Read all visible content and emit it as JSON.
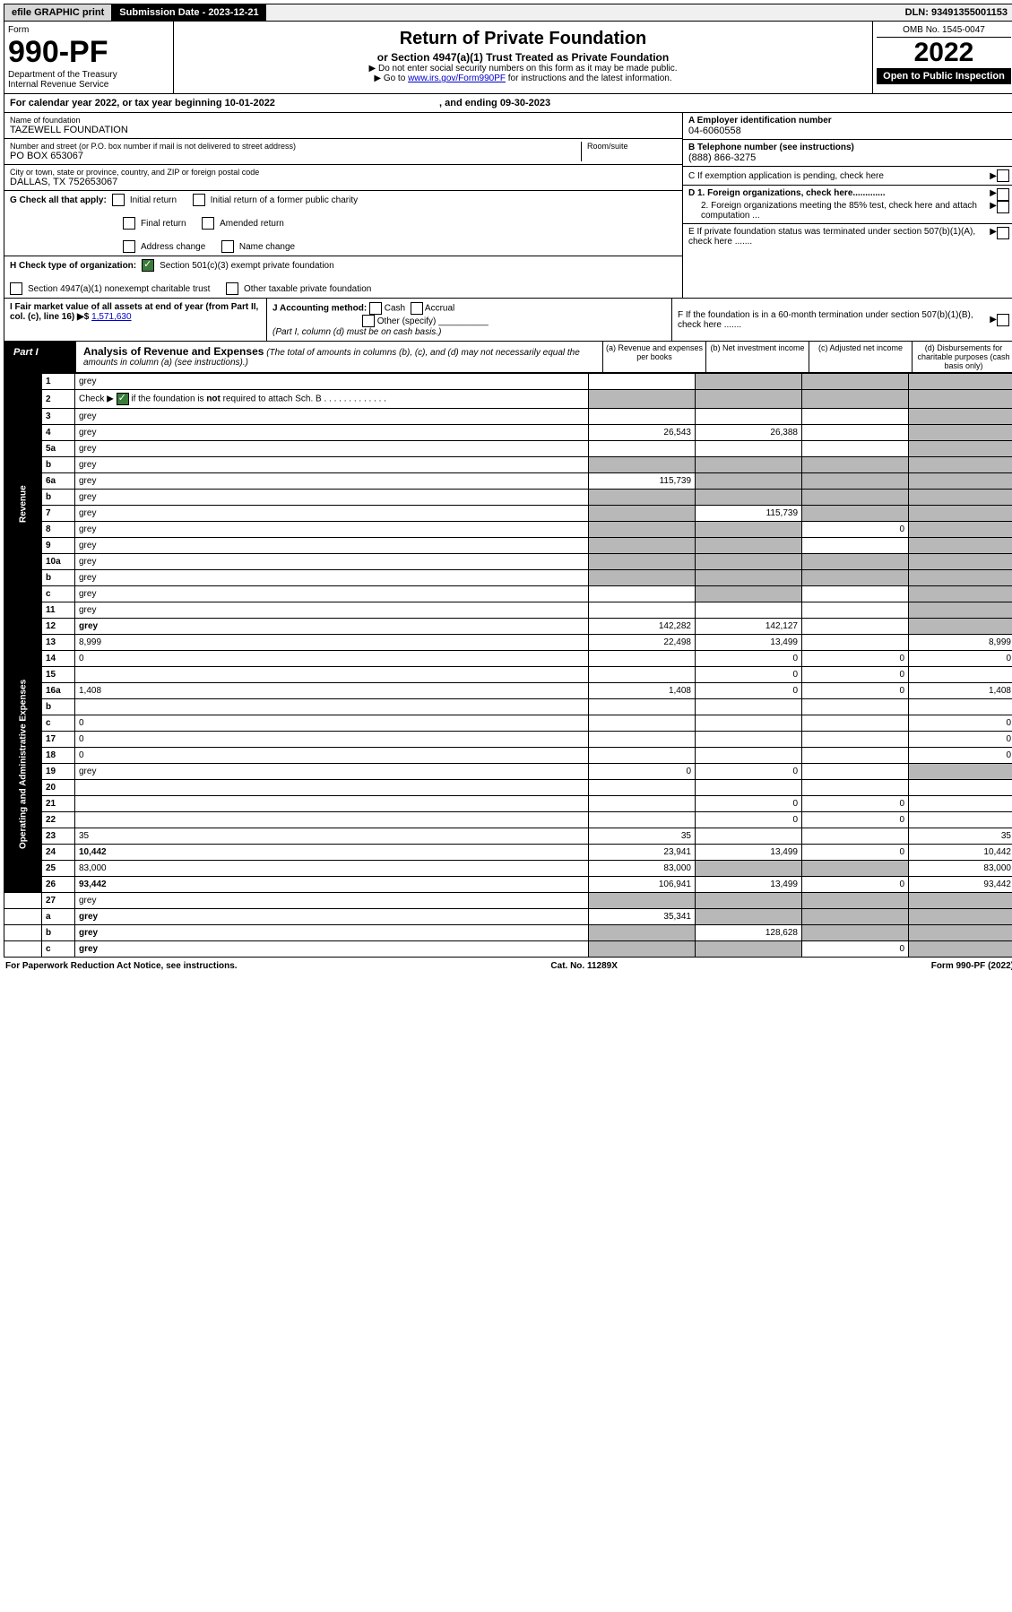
{
  "topbar": {
    "efile": "efile GRAPHIC print",
    "sub_date": "Submission Date - 2023-12-21",
    "dln": "DLN: 93491355001153"
  },
  "header": {
    "form_label": "Form",
    "form_no": "990-PF",
    "dept": "Department of the Treasury\nInternal Revenue Service",
    "title": "Return of Private Foundation",
    "subtitle": "or Section 4947(a)(1) Trust Treated as Private Foundation",
    "note1": "▶ Do not enter social security numbers on this form as it may be made public.",
    "note2": "▶ Go to www.irs.gov/Form990PF for instructions and the latest information.",
    "link": "www.irs.gov/Form990PF",
    "omb": "OMB No. 1545-0047",
    "year": "2022",
    "open": "Open to Public Inspection"
  },
  "cal_year": {
    "prefix": "For calendar year 2022, or tax year beginning ",
    "begin": "10-01-2022",
    "mid": " , and ending ",
    "end": "09-30-2023"
  },
  "ident": {
    "name_lbl": "Name of foundation",
    "name": "TAZEWELL FOUNDATION",
    "addr_lbl": "Number and street (or P.O. box number if mail is not delivered to street address)",
    "addr": "PO BOX 653067",
    "room_lbl": "Room/suite",
    "city_lbl": "City or town, state or province, country, and ZIP or foreign postal code",
    "city": "DALLAS, TX  752653067",
    "a_lbl": "A Employer identification number",
    "ein": "04-6060558",
    "b_lbl": "B Telephone number (see instructions)",
    "phone": "(888) 866-3275",
    "c_lbl": "C If exemption application is pending, check here",
    "d1": "D 1. Foreign organizations, check here.............",
    "d2": "2. Foreign organizations meeting the 85% test, check here and attach computation ...",
    "e": "E If private foundation status was terminated under section 507(b)(1)(A), check here .......",
    "f": "F If the foundation is in a 60-month termination under section 507(b)(1)(B), check here ......."
  },
  "g": {
    "lbl": "G Check all that apply:",
    "opts": [
      "Initial return",
      "Initial return of a former public charity",
      "Final return",
      "Amended return",
      "Address change",
      "Name change"
    ]
  },
  "h": {
    "lbl": "H Check type of organization:",
    "o1": "Section 501(c)(3) exempt private foundation",
    "o2": "Section 4947(a)(1) nonexempt charitable trust",
    "o3": "Other taxable private foundation"
  },
  "i": {
    "lbl": "I Fair market value of all assets at end of year (from Part II, col. (c), line 16) ▶$",
    "val": "1,571,630"
  },
  "j": {
    "lbl": "J Accounting method:",
    "cash": "Cash",
    "accrual": "Accrual",
    "other": "Other (specify)",
    "note": "(Part I, column (d) must be on cash basis.)"
  },
  "part1": {
    "lbl": "Part I",
    "title": "Analysis of Revenue and Expenses",
    "note": "(The total of amounts in columns (b), (c), and (d) may not necessarily equal the amounts in column (a) (see instructions).)",
    "cols": {
      "a": "(a) Revenue and expenses per books",
      "b": "(b) Net investment income",
      "c": "(c) Adjusted net income",
      "d": "(d) Disbursements for charitable purposes (cash basis only)"
    }
  },
  "rows": [
    {
      "n": "1",
      "d": "grey",
      "a": "",
      "b": "grey",
      "c": "grey",
      "side": "rev"
    },
    {
      "n": "2",
      "d": "grey",
      "a": "grey",
      "b": "grey",
      "c": "grey",
      "side": "rev",
      "checked": true
    },
    {
      "n": "3",
      "d": "grey",
      "a": "",
      "b": "",
      "c": "",
      "side": "rev"
    },
    {
      "n": "4",
      "d": "grey",
      "a": "26,543",
      "b": "26,388",
      "c": "",
      "side": "rev"
    },
    {
      "n": "5a",
      "d": "grey",
      "a": "",
      "b": "",
      "c": "",
      "side": "rev"
    },
    {
      "n": "b",
      "d": "grey",
      "a": "grey",
      "b": "grey",
      "c": "grey",
      "side": "rev"
    },
    {
      "n": "6a",
      "d": "grey",
      "a": "115,739",
      "b": "grey",
      "c": "grey",
      "side": "rev"
    },
    {
      "n": "b",
      "d": "grey",
      "a": "grey",
      "b": "grey",
      "c": "grey",
      "side": "rev"
    },
    {
      "n": "7",
      "d": "grey",
      "a": "grey",
      "b": "115,739",
      "c": "grey",
      "side": "rev"
    },
    {
      "n": "8",
      "d": "grey",
      "a": "grey",
      "b": "grey",
      "c": "0",
      "side": "rev"
    },
    {
      "n": "9",
      "d": "grey",
      "a": "grey",
      "b": "grey",
      "c": "",
      "side": "rev"
    },
    {
      "n": "10a",
      "d": "grey",
      "a": "grey",
      "b": "grey",
      "c": "grey",
      "side": "rev"
    },
    {
      "n": "b",
      "d": "grey",
      "a": "grey",
      "b": "grey",
      "c": "grey",
      "side": "rev"
    },
    {
      "n": "c",
      "d": "grey",
      "a": "",
      "b": "grey",
      "c": "",
      "side": "rev"
    },
    {
      "n": "11",
      "d": "grey",
      "a": "",
      "b": "",
      "c": "",
      "side": "rev"
    },
    {
      "n": "12",
      "d": "grey",
      "a": "142,282",
      "b": "142,127",
      "c": "",
      "side": "rev",
      "bold": true
    },
    {
      "n": "13",
      "d": "8,999",
      "a": "22,498",
      "b": "13,499",
      "c": "",
      "side": "exp"
    },
    {
      "n": "14",
      "d": "0",
      "a": "",
      "b": "0",
      "c": "0",
      "side": "exp"
    },
    {
      "n": "15",
      "d": "",
      "a": "",
      "b": "0",
      "c": "0",
      "side": "exp"
    },
    {
      "n": "16a",
      "d": "1,408",
      "a": "1,408",
      "b": "0",
      "c": "0",
      "side": "exp"
    },
    {
      "n": "b",
      "d": "",
      "a": "",
      "b": "",
      "c": "",
      "side": "exp"
    },
    {
      "n": "c",
      "d": "0",
      "a": "",
      "b": "",
      "c": "",
      "side": "exp"
    },
    {
      "n": "17",
      "d": "0",
      "a": "",
      "b": "",
      "c": "",
      "side": "exp"
    },
    {
      "n": "18",
      "d": "0",
      "a": "",
      "b": "",
      "c": "",
      "side": "exp"
    },
    {
      "n": "19",
      "d": "grey",
      "a": "0",
      "b": "0",
      "c": "",
      "side": "exp"
    },
    {
      "n": "20",
      "d": "",
      "a": "",
      "b": "",
      "c": "",
      "side": "exp"
    },
    {
      "n": "21",
      "d": "",
      "a": "",
      "b": "0",
      "c": "0",
      "side": "exp"
    },
    {
      "n": "22",
      "d": "",
      "a": "",
      "b": "0",
      "c": "0",
      "side": "exp"
    },
    {
      "n": "23",
      "d": "35",
      "a": "35",
      "b": "",
      "c": "",
      "side": "exp"
    },
    {
      "n": "24",
      "d": "10,442",
      "a": "23,941",
      "b": "13,499",
      "c": "0",
      "side": "exp",
      "bold": true
    },
    {
      "n": "25",
      "d": "83,000",
      "a": "83,000",
      "b": "grey",
      "c": "grey",
      "side": "exp"
    },
    {
      "n": "26",
      "d": "93,442",
      "a": "106,941",
      "b": "13,499",
      "c": "0",
      "side": "exp",
      "bold": true
    },
    {
      "n": "27",
      "d": "grey",
      "a": "grey",
      "b": "grey",
      "c": "grey",
      "side": "none"
    },
    {
      "n": "a",
      "d": "grey",
      "a": "35,341",
      "b": "grey",
      "c": "grey",
      "side": "none",
      "bold": true
    },
    {
      "n": "b",
      "d": "grey",
      "a": "grey",
      "b": "128,628",
      "c": "grey",
      "side": "none",
      "bold": true
    },
    {
      "n": "c",
      "d": "grey",
      "a": "grey",
      "b": "grey",
      "c": "0",
      "side": "none",
      "bold": true
    }
  ],
  "side_labels": {
    "rev": "Revenue",
    "exp": "Operating and Administrative Expenses"
  },
  "footer": {
    "left": "For Paperwork Reduction Act Notice, see instructions.",
    "mid": "Cat. No. 11289X",
    "right": "Form 990-PF (2022)"
  }
}
